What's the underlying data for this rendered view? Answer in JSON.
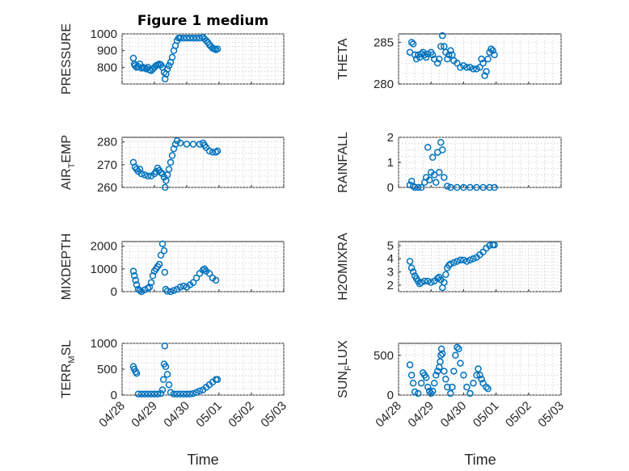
{
  "figure": {
    "title": "Figure 1 medium",
    "xlabel": "Time",
    "x_tick_labels": [
      "04/28",
      "04/29",
      "04/30",
      "05/01",
      "05/02",
      "05/03"
    ],
    "marker_color": "#0072bd"
  },
  "chart_data": [
    {
      "type": "scatter",
      "ylabel": "PRESSURE",
      "x": [
        "2021-04-28",
        "2021-05-03"
      ],
      "ylim": [
        700,
        1000
      ],
      "y_ticks": [
        800,
        900,
        1000
      ],
      "grid": true,
      "points": [
        [
          0.35,
          855
        ],
        [
          0.38,
          820
        ],
        [
          0.4,
          810
        ],
        [
          0.45,
          800
        ],
        [
          0.5,
          805
        ],
        [
          0.55,
          820
        ],
        [
          0.6,
          795
        ],
        [
          0.65,
          800
        ],
        [
          0.7,
          795
        ],
        [
          0.75,
          790
        ],
        [
          0.8,
          800
        ],
        [
          0.85,
          785
        ],
        [
          0.9,
          780
        ],
        [
          0.95,
          790
        ],
        [
          1.0,
          800
        ],
        [
          1.05,
          810
        ],
        [
          1.1,
          815
        ],
        [
          1.15,
          820
        ],
        [
          1.2,
          815
        ],
        [
          1.25,
          800
        ],
        [
          1.3,
          770
        ],
        [
          1.33,
          730
        ],
        [
          1.36,
          760
        ],
        [
          1.4,
          790
        ],
        [
          1.45,
          810
        ],
        [
          1.5,
          830
        ],
        [
          1.55,
          860
        ],
        [
          1.6,
          900
        ],
        [
          1.65,
          930
        ],
        [
          1.7,
          960
        ],
        [
          1.75,
          975
        ],
        [
          1.8,
          975
        ],
        [
          1.9,
          975
        ],
        [
          2.0,
          975
        ],
        [
          2.1,
          975
        ],
        [
          2.2,
          975
        ],
        [
          2.3,
          975
        ],
        [
          2.4,
          975
        ],
        [
          2.5,
          980
        ],
        [
          2.55,
          970
        ],
        [
          2.6,
          960
        ],
        [
          2.65,
          950
        ],
        [
          2.7,
          935
        ],
        [
          2.75,
          925
        ],
        [
          2.8,
          915
        ],
        [
          2.85,
          910
        ],
        [
          2.9,
          905
        ],
        [
          2.95,
          910
        ]
      ]
    },
    {
      "type": "scatter",
      "ylabel": "THETA",
      "ylim": [
        280,
        286
      ],
      "y_ticks": [
        280,
        285
      ],
      "grid": true,
      "points": [
        [
          0.35,
          283.8
        ],
        [
          0.4,
          285
        ],
        [
          0.45,
          284.8
        ],
        [
          0.5,
          283.5
        ],
        [
          0.55,
          283
        ],
        [
          0.6,
          283.5
        ],
        [
          0.65,
          283.2
        ],
        [
          0.7,
          283.6
        ],
        [
          0.75,
          283.8
        ],
        [
          0.8,
          283.5
        ],
        [
          0.85,
          283.2
        ],
        [
          0.9,
          283.6
        ],
        [
          1.0,
          283.8
        ],
        [
          1.05,
          283.5
        ],
        [
          1.1,
          283
        ],
        [
          1.2,
          282.5
        ],
        [
          1.25,
          283
        ],
        [
          1.3,
          284.5
        ],
        [
          1.35,
          285.8
        ],
        [
          1.4,
          284.5
        ],
        [
          1.45,
          283.8
        ],
        [
          1.5,
          283
        ],
        [
          1.55,
          283.5
        ],
        [
          1.6,
          284
        ],
        [
          1.65,
          283.5
        ],
        [
          1.7,
          282.8
        ],
        [
          1.8,
          282.5
        ],
        [
          1.9,
          282
        ],
        [
          2.0,
          282.2
        ],
        [
          2.1,
          282
        ],
        [
          2.2,
          282
        ],
        [
          2.3,
          281.8
        ],
        [
          2.4,
          281.8
        ],
        [
          2.5,
          282
        ],
        [
          2.55,
          283
        ],
        [
          2.6,
          282.5
        ],
        [
          2.65,
          281
        ],
        [
          2.7,
          281.5
        ],
        [
          2.75,
          283
        ],
        [
          2.8,
          283.8
        ],
        [
          2.85,
          284.2
        ],
        [
          2.9,
          284
        ],
        [
          2.95,
          283.5
        ]
      ]
    },
    {
      "type": "scatter",
      "ylabel": "AIR_T EMP",
      "ylim": [
        260,
        282
      ],
      "y_ticks": [
        260,
        270,
        280
      ],
      "grid": true,
      "points": [
        [
          0.35,
          271
        ],
        [
          0.4,
          269
        ],
        [
          0.45,
          268
        ],
        [
          0.5,
          267
        ],
        [
          0.55,
          268
        ],
        [
          0.6,
          266
        ],
        [
          0.7,
          265.5
        ],
        [
          0.8,
          265
        ],
        [
          0.9,
          265
        ],
        [
          1.0,
          266
        ],
        [
          1.05,
          267
        ],
        [
          1.1,
          268.5
        ],
        [
          1.15,
          267.5
        ],
        [
          1.2,
          266.5
        ],
        [
          1.25,
          266
        ],
        [
          1.3,
          264.5
        ],
        [
          1.33,
          260
        ],
        [
          1.36,
          263
        ],
        [
          1.4,
          265.5
        ],
        [
          1.45,
          268
        ],
        [
          1.5,
          271
        ],
        [
          1.55,
          274
        ],
        [
          1.6,
          277
        ],
        [
          1.65,
          279
        ],
        [
          1.7,
          280.5
        ],
        [
          1.8,
          279.5
        ],
        [
          2.0,
          279
        ],
        [
          2.2,
          279
        ],
        [
          2.4,
          279
        ],
        [
          2.5,
          279.5
        ],
        [
          2.55,
          278.5
        ],
        [
          2.6,
          277.5
        ],
        [
          2.7,
          276
        ],
        [
          2.8,
          275.5
        ],
        [
          2.9,
          275.5
        ],
        [
          2.95,
          276
        ]
      ]
    },
    {
      "type": "scatter",
      "ylabel": "RAINFALL",
      "ylim": [
        0,
        2
      ],
      "y_ticks": [
        0,
        1,
        2
      ],
      "grid": true,
      "points": [
        [
          0.35,
          0.1
        ],
        [
          0.4,
          0.25
        ],
        [
          0.45,
          0.05
        ],
        [
          0.5,
          0
        ],
        [
          0.6,
          0
        ],
        [
          0.7,
          0
        ],
        [
          0.8,
          0.2
        ],
        [
          0.85,
          0.4
        ],
        [
          0.9,
          1.6
        ],
        [
          0.95,
          0.3
        ],
        [
          1.0,
          0.6
        ],
        [
          1.05,
          1.2
        ],
        [
          1.1,
          0.5
        ],
        [
          1.15,
          0.2
        ],
        [
          1.2,
          1.4
        ],
        [
          1.25,
          0.6
        ],
        [
          1.3,
          1.8
        ],
        [
          1.35,
          1.5
        ],
        [
          1.4,
          0.4
        ],
        [
          1.5,
          0.05
        ],
        [
          1.6,
          0
        ],
        [
          1.8,
          0
        ],
        [
          2.0,
          0
        ],
        [
          2.2,
          0
        ],
        [
          2.4,
          0
        ],
        [
          2.6,
          0
        ],
        [
          2.8,
          0
        ],
        [
          2.95,
          0
        ]
      ]
    },
    {
      "type": "scatter",
      "ylabel": "MIXDEPTH",
      "ylim": [
        0,
        2200
      ],
      "y_ticks": [
        0,
        1000,
        2000
      ],
      "grid": true,
      "points": [
        [
          0.35,
          900
        ],
        [
          0.38,
          700
        ],
        [
          0.42,
          500
        ],
        [
          0.45,
          300
        ],
        [
          0.5,
          100
        ],
        [
          0.55,
          50
        ],
        [
          0.6,
          0
        ],
        [
          0.7,
          80
        ],
        [
          0.8,
          150
        ],
        [
          0.85,
          200
        ],
        [
          0.9,
          400
        ],
        [
          0.95,
          700
        ],
        [
          1.0,
          900
        ],
        [
          1.05,
          1000
        ],
        [
          1.1,
          1100
        ],
        [
          1.15,
          1200
        ],
        [
          1.2,
          1600
        ],
        [
          1.25,
          2100
        ],
        [
          1.3,
          1800
        ],
        [
          1.32,
          850
        ],
        [
          1.35,
          100
        ],
        [
          1.4,
          20
        ],
        [
          1.5,
          0
        ],
        [
          1.6,
          50
        ],
        [
          1.7,
          100
        ],
        [
          1.8,
          200
        ],
        [
          1.9,
          250
        ],
        [
          2.0,
          200
        ],
        [
          2.1,
          300
        ],
        [
          2.2,
          400
        ],
        [
          2.3,
          600
        ],
        [
          2.4,
          800
        ],
        [
          2.5,
          950
        ],
        [
          2.55,
          1000
        ],
        [
          2.6,
          900
        ],
        [
          2.7,
          800
        ],
        [
          2.8,
          600
        ],
        [
          2.9,
          500
        ]
      ]
    },
    {
      "type": "scatter",
      "ylabel": "H2OMIXRA",
      "ylim": [
        1.5,
        5.3
      ],
      "y_ticks": [
        2,
        3,
        4,
        5
      ],
      "grid": true,
      "points": [
        [
          0.35,
          3.8
        ],
        [
          0.4,
          3.3
        ],
        [
          0.45,
          3
        ],
        [
          0.5,
          2.7
        ],
        [
          0.55,
          2.5
        ],
        [
          0.6,
          2.3
        ],
        [
          0.65,
          2.1
        ],
        [
          0.7,
          2.2
        ],
        [
          0.8,
          2.3
        ],
        [
          0.9,
          2.3
        ],
        [
          1.0,
          2.2
        ],
        [
          1.1,
          2.3
        ],
        [
          1.2,
          2.5
        ],
        [
          1.25,
          2.6
        ],
        [
          1.3,
          2.4
        ],
        [
          1.35,
          1.8
        ],
        [
          1.4,
          2.2
        ],
        [
          1.45,
          2.8
        ],
        [
          1.5,
          3.3
        ],
        [
          1.55,
          3.5
        ],
        [
          1.6,
          3.6
        ],
        [
          1.7,
          3.7
        ],
        [
          1.8,
          3.8
        ],
        [
          1.9,
          3.9
        ],
        [
          2.0,
          3.9
        ],
        [
          2.1,
          3.8
        ],
        [
          2.2,
          3.9
        ],
        [
          2.3,
          4
        ],
        [
          2.4,
          4.1
        ],
        [
          2.5,
          4.3
        ],
        [
          2.6,
          4.5
        ],
        [
          2.7,
          4.8
        ],
        [
          2.8,
          5
        ],
        [
          2.9,
          5.05
        ],
        [
          2.95,
          5.05
        ]
      ]
    },
    {
      "type": "scatter",
      "ylabel": "TERR_M SL",
      "ylim": [
        0,
        1000
      ],
      "y_ticks": [
        0,
        500,
        1000
      ],
      "grid": true,
      "points": [
        [
          0.35,
          550
        ],
        [
          0.38,
          500
        ],
        [
          0.42,
          450
        ],
        [
          0.45,
          420
        ],
        [
          0.5,
          20
        ],
        [
          0.6,
          20
        ],
        [
          0.7,
          20
        ],
        [
          0.8,
          20
        ],
        [
          0.9,
          20
        ],
        [
          1.0,
          20
        ],
        [
          1.1,
          20
        ],
        [
          1.2,
          30
        ],
        [
          1.25,
          100
        ],
        [
          1.28,
          300
        ],
        [
          1.3,
          600
        ],
        [
          1.32,
          950
        ],
        [
          1.35,
          550
        ],
        [
          1.4,
          400
        ],
        [
          1.45,
          200
        ],
        [
          1.5,
          50
        ],
        [
          1.6,
          20
        ],
        [
          1.7,
          20
        ],
        [
          1.8,
          20
        ],
        [
          1.9,
          20
        ],
        [
          2.0,
          20
        ],
        [
          2.1,
          20
        ],
        [
          2.2,
          30
        ],
        [
          2.3,
          50
        ],
        [
          2.4,
          80
        ],
        [
          2.5,
          100
        ],
        [
          2.6,
          150
        ],
        [
          2.7,
          200
        ],
        [
          2.8,
          250
        ],
        [
          2.9,
          300
        ],
        [
          2.95,
          300
        ]
      ]
    },
    {
      "type": "scatter",
      "ylabel": "SUN_F LUX",
      "ylim": [
        0,
        650
      ],
      "y_ticks": [
        0,
        500
      ],
      "grid": true,
      "points": [
        [
          0.35,
          380
        ],
        [
          0.4,
          250
        ],
        [
          0.45,
          150
        ],
        [
          0.5,
          40
        ],
        [
          0.6,
          20
        ],
        [
          0.7,
          150
        ],
        [
          0.75,
          280
        ],
        [
          0.8,
          250
        ],
        [
          0.85,
          220
        ],
        [
          0.9,
          100
        ],
        [
          0.95,
          50
        ],
        [
          1.0,
          20
        ],
        [
          1.05,
          50
        ],
        [
          1.1,
          150
        ],
        [
          1.15,
          250
        ],
        [
          1.2,
          300
        ],
        [
          1.25,
          350
        ],
        [
          1.28,
          420
        ],
        [
          1.3,
          500
        ],
        [
          1.32,
          580
        ],
        [
          1.35,
          520
        ],
        [
          1.4,
          300
        ],
        [
          1.45,
          200
        ],
        [
          1.5,
          100
        ],
        [
          1.6,
          20
        ],
        [
          1.65,
          100
        ],
        [
          1.7,
          300
        ],
        [
          1.75,
          500
        ],
        [
          1.8,
          600
        ],
        [
          1.85,
          580
        ],
        [
          1.9,
          400
        ],
        [
          2.0,
          250
        ],
        [
          2.1,
          100
        ],
        [
          2.2,
          20
        ],
        [
          2.3,
          150
        ],
        [
          2.4,
          250
        ],
        [
          2.45,
          330
        ],
        [
          2.5,
          250
        ],
        [
          2.55,
          200
        ],
        [
          2.6,
          150
        ],
        [
          2.7,
          100
        ],
        [
          2.75,
          80
        ]
      ]
    }
  ]
}
